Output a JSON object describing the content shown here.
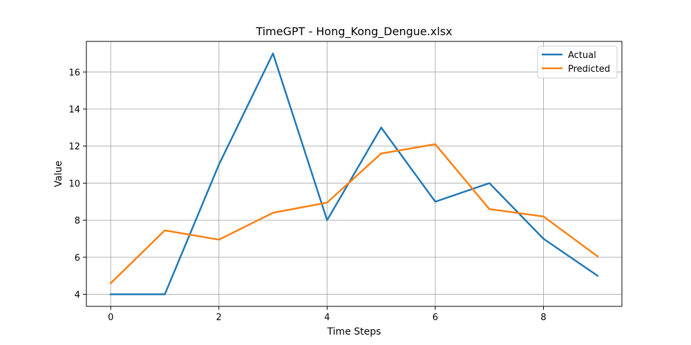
{
  "chart_data": {
    "type": "line",
    "title": "TimeGPT - Hong_Kong_Dengue.xlsx",
    "xlabel": "Time Steps",
    "ylabel": "Value",
    "x": [
      0,
      1,
      2,
      3,
      4,
      5,
      6,
      7,
      8,
      9
    ],
    "series": [
      {
        "name": "Actual",
        "color": "#1f77b4",
        "values": [
          4,
          4,
          11,
          17,
          8,
          13,
          9,
          10,
          7,
          5
        ]
      },
      {
        "name": "Predicted",
        "color": "#ff7f0e",
        "values": [
          4.6,
          7.45,
          6.95,
          8.4,
          8.95,
          11.6,
          12.1,
          8.6,
          8.2,
          6.05
        ]
      }
    ],
    "xlim": [
      -0.45,
      9.45
    ],
    "ylim": [
      3.35,
      17.65
    ],
    "xticks": [
      0,
      2,
      4,
      6,
      8
    ],
    "yticks": [
      4,
      6,
      8,
      10,
      12,
      14,
      16
    ],
    "grid": true,
    "legend_position": "top-right"
  }
}
